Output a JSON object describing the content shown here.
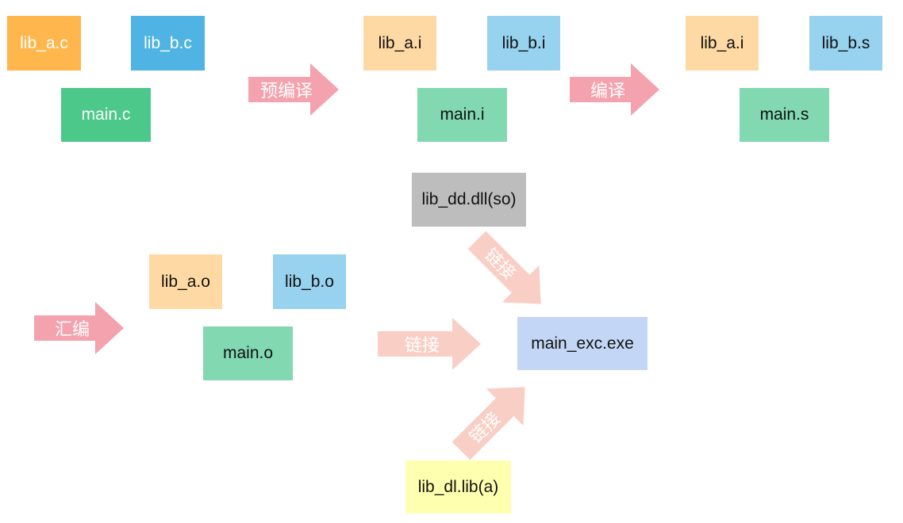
{
  "stage1": {
    "lib_a": {
      "label": "lib_a.c",
      "color": "#FFB74D"
    },
    "lib_b": {
      "label": "lib_b.c",
      "color": "#4FB3E3"
    },
    "main": {
      "label": "main.c",
      "color": "#4CC98A"
    }
  },
  "stage2": {
    "lib_a": {
      "label": "lib_a.i",
      "color": "#FFD9A3"
    },
    "lib_b": {
      "label": "lib_b.i",
      "color": "#97D2EF"
    },
    "main": {
      "label": "main.i",
      "color": "#82D8B0"
    }
  },
  "stage3": {
    "lib_a": {
      "label": "lib_a.i",
      "color": "#FFD9A3"
    },
    "lib_b": {
      "label": "lib_b.s",
      "color": "#97D2EF"
    },
    "main": {
      "label": "main.s",
      "color": "#82D8B0"
    }
  },
  "stage4": {
    "lib_a": {
      "label": "lib_a.o",
      "color": "#FFD9A3"
    },
    "lib_b": {
      "label": "lib_b.o",
      "color": "#97D2EF"
    },
    "main": {
      "label": "main.o",
      "color": "#82D8B0"
    }
  },
  "dll": {
    "label": "lib_dd.dll(so)",
    "color": "#BDBDBD"
  },
  "static_lib": {
    "label": "lib_dl.lib(a)",
    "color": "#FFFFB0"
  },
  "exe": {
    "label": "main_exc.exe",
    "color": "#C3D6F5"
  },
  "arrows": {
    "preprocess": "预编译",
    "compile": "编译",
    "assemble": "汇编",
    "link_dll": "链接",
    "link_objects": "链接",
    "link_static": "链接"
  },
  "colors": {
    "arrow_strong": "#F4A2AD",
    "arrow_light": "#F9CEC4"
  }
}
